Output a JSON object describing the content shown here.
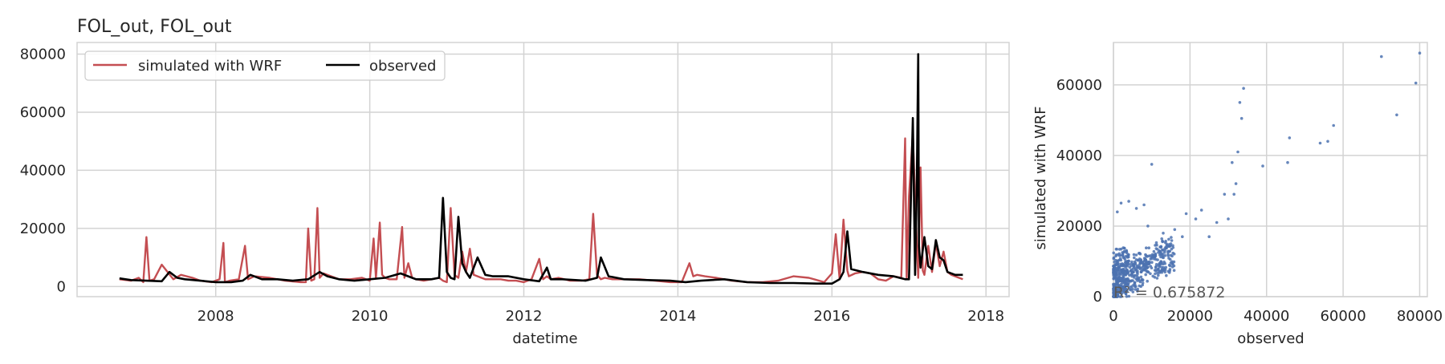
{
  "chart_data": [
    {
      "type": "line",
      "title": "FOL_out, FOL_out",
      "xlabel": "datetime",
      "ylabel": "",
      "xlim": [
        2006.2,
        2018.3
      ],
      "ylim": [
        -3500,
        84000
      ],
      "xticks": [
        2008,
        2010,
        2012,
        2014,
        2016,
        2018
      ],
      "yticks": [
        0,
        20000,
        40000,
        60000,
        80000
      ],
      "grid": true,
      "legend": {
        "placement": "top-left",
        "ncol": 2
      },
      "series": [
        {
          "name": "simulated with WRF",
          "color": "#c44e52",
          "x": [
            2006.75,
            2006.9,
            2007.0,
            2007.06,
            2007.1,
            2007.14,
            2007.2,
            2007.3,
            2007.45,
            2007.55,
            2007.7,
            2007.8,
            2007.95,
            2008.05,
            2008.1,
            2008.12,
            2008.18,
            2008.3,
            2008.38,
            2008.42,
            2008.5,
            2008.7,
            2008.9,
            2009.1,
            2009.17,
            2009.2,
            2009.24,
            2009.28,
            2009.32,
            2009.35,
            2009.4,
            2009.5,
            2009.6,
            2009.75,
            2009.9,
            2009.95,
            2010.0,
            2010.05,
            2010.08,
            2010.13,
            2010.16,
            2010.2,
            2010.25,
            2010.35,
            2010.42,
            2010.45,
            2010.5,
            2010.55,
            2010.6,
            2010.7,
            2010.8,
            2010.9,
            2010.95,
            2011.0,
            2011.05,
            2011.1,
            2011.15,
            2011.2,
            2011.25,
            2011.3,
            2011.35,
            2011.4,
            2011.45,
            2011.5,
            2011.6,
            2011.7,
            2011.8,
            2011.9,
            2012.0,
            2012.1,
            2012.2,
            2012.25,
            2012.3,
            2012.35,
            2012.45,
            2012.6,
            2012.75,
            2012.85,
            2012.9,
            2012.95,
            2013.0,
            2013.05,
            2013.15,
            2013.3,
            2013.5,
            2013.7,
            2013.9,
            2014.05,
            2014.15,
            2014.2,
            2014.25,
            2014.35,
            2014.5,
            2014.7,
            2014.9,
            2015.1,
            2015.3,
            2015.5,
            2015.7,
            2015.9,
            2016.0,
            2016.05,
            2016.1,
            2016.15,
            2016.2,
            2016.22,
            2016.3,
            2016.4,
            2016.5,
            2016.6,
            2016.7,
            2016.8,
            2016.9,
            2016.95,
            2016.97,
            2017.0,
            2017.05,
            2017.08,
            2017.12,
            2017.15,
            2017.18,
            2017.2,
            2017.25,
            2017.3,
            2017.35,
            2017.4,
            2017.45,
            2017.5,
            2017.55,
            2017.6,
            2017.65,
            2017.7
          ],
          "y": [
            2500,
            2000,
            3000,
            1500,
            17000,
            2000,
            2500,
            7500,
            2500,
            4000,
            3000,
            2000,
            1500,
            2500,
            15000,
            1500,
            2000,
            2500,
            14000,
            2500,
            3500,
            3000,
            2000,
            1500,
            1500,
            20000,
            2000,
            2500,
            27000,
            3000,
            4500,
            3500,
            2500,
            2500,
            3000,
            2500,
            2000,
            16500,
            3000,
            22000,
            4000,
            3000,
            2500,
            2500,
            20500,
            3000,
            8000,
            3000,
            2500,
            2000,
            2500,
            3000,
            2000,
            1500,
            27000,
            4000,
            3000,
            12000,
            5000,
            13000,
            4000,
            3500,
            3000,
            2500,
            2500,
            2500,
            2000,
            2000,
            1500,
            2500,
            9500,
            2500,
            3500,
            2500,
            3000,
            2000,
            2000,
            2500,
            25000,
            4000,
            2500,
            3000,
            2500,
            2500,
            2500,
            2000,
            1500,
            1500,
            8000,
            3500,
            4000,
            3500,
            3000,
            2000,
            1500,
            1500,
            2000,
            3500,
            3000,
            1500,
            4500,
            18000,
            2500,
            23000,
            5500,
            3500,
            4500,
            5000,
            4500,
            2500,
            2000,
            3500,
            3000,
            51000,
            2500,
            31000,
            53000,
            30000,
            3000,
            41000,
            5500,
            4000,
            14000,
            5000,
            15000,
            7000,
            12000,
            5000,
            4000,
            3500,
            3000,
            2500
          ],
          "description_ok": true
        },
        {
          "name": "observed",
          "color": "#000000",
          "x": [
            2006.75,
            2006.9,
            2007.1,
            2007.3,
            2007.4,
            2007.5,
            2007.6,
            2007.8,
            2008.0,
            2008.2,
            2008.35,
            2008.45,
            2008.6,
            2008.8,
            2009.0,
            2009.2,
            2009.35,
            2009.45,
            2009.6,
            2009.8,
            2010.0,
            2010.2,
            2010.4,
            2010.6,
            2010.8,
            2010.9,
            2010.95,
            2011.0,
            2011.05,
            2011.1,
            2011.15,
            2011.2,
            2011.25,
            2011.3,
            2011.4,
            2011.5,
            2011.6,
            2011.8,
            2012.0,
            2012.2,
            2012.3,
            2012.35,
            2012.5,
            2012.8,
            2012.95,
            2013.0,
            2013.1,
            2013.3,
            2013.6,
            2013.9,
            2014.1,
            2014.3,
            2014.6,
            2014.9,
            2015.2,
            2015.5,
            2015.8,
            2016.0,
            2016.1,
            2016.15,
            2016.2,
            2016.25,
            2016.4,
            2016.6,
            2016.8,
            2016.95,
            2017.0,
            2017.05,
            2017.08,
            2017.1,
            2017.12,
            2017.13,
            2017.15,
            2017.2,
            2017.25,
            2017.3,
            2017.35,
            2017.4,
            2017.45,
            2017.5,
            2017.6,
            2017.7
          ],
          "y": [
            2800,
            2200,
            2000,
            1800,
            5000,
            3000,
            2500,
            2000,
            1500,
            1500,
            2000,
            4000,
            2500,
            2500,
            2000,
            2500,
            5000,
            3500,
            2500,
            2000,
            2500,
            3000,
            4500,
            2500,
            2500,
            3000,
            30500,
            5000,
            3000,
            2500,
            24000,
            8000,
            5000,
            3000,
            10000,
            4000,
            3500,
            3500,
            2500,
            1800,
            6500,
            2500,
            2500,
            2000,
            3000,
            10000,
            3500,
            2500,
            2200,
            2000,
            1500,
            2000,
            2500,
            1500,
            1200,
            1200,
            1000,
            1000,
            2500,
            5000,
            19000,
            6000,
            5000,
            4000,
            3500,
            2500,
            2500,
            58000,
            4000,
            32000,
            80000,
            14000,
            6500,
            17000,
            7000,
            6000,
            16000,
            10000,
            9000,
            5000,
            4000,
            4000
          ]
        }
      ]
    },
    {
      "type": "scatter",
      "title": "",
      "xlabel": "observed",
      "ylabel": "simulated with WRF",
      "xlim": [
        0,
        82000
      ],
      "ylim": [
        0,
        72000
      ],
      "xticks": [
        0,
        20000,
        40000,
        60000,
        80000
      ],
      "yticks": [
        0,
        20000,
        40000,
        60000
      ],
      "grid": true,
      "color": "#4c72b0",
      "annotation": "R² = 0.675872",
      "outliers": {
        "x": [
          80000,
          79000,
          74000,
          70000,
          57500,
          56000,
          54000,
          46000,
          45500,
          39000,
          34000,
          33500,
          33000,
          32500,
          32000,
          31500,
          31000,
          30000,
          29000,
          27000,
          25000,
          23000,
          21500,
          19000,
          18000,
          16000,
          15000,
          13000,
          12000,
          10000,
          9000,
          8000,
          6000,
          4000,
          2000,
          1000
        ],
        "y": [
          69000,
          60500,
          51500,
          68000,
          48500,
          44000,
          43500,
          45000,
          38000,
          37000,
          59000,
          50500,
          55000,
          41000,
          32000,
          29000,
          38000,
          22000,
          29000,
          21000,
          17000,
          24500,
          22000,
          23500,
          17000,
          19000,
          15000,
          18000,
          13000,
          37500,
          20000,
          26000,
          25000,
          27000,
          26500,
          24000
        ]
      }
    }
  ]
}
